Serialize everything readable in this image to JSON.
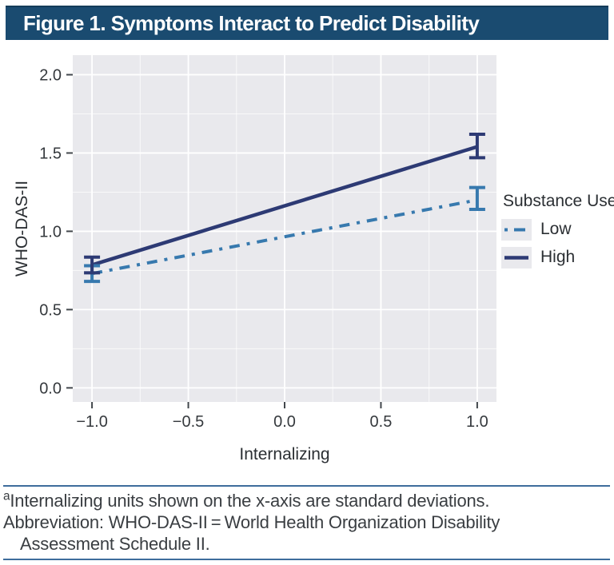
{
  "header": {
    "title": "Figure 1. Symptoms Interact to Predict Disability"
  },
  "chart_data": {
    "type": "line",
    "title": "",
    "xlabel": "Internalizing",
    "ylabel": "WHO-DAS-II",
    "x_ticks": [
      -1.0,
      -0.5,
      0.0,
      0.5,
      1.0
    ],
    "y_ticks": [
      0.0,
      0.5,
      1.0,
      1.5,
      2.0
    ],
    "x_range": [
      -1.1,
      1.1
    ],
    "y_range": [
      -0.09,
      2.125
    ],
    "grid": {
      "major": true,
      "minor": true,
      "color": "#ffffff"
    },
    "panel_bg": "#e9e9ed",
    "error_bars": true,
    "legend": {
      "title": "Substance Use",
      "position": "right",
      "items": [
        {
          "label": "Low",
          "series": 0
        },
        {
          "label": "High",
          "series": 1
        }
      ]
    },
    "series": [
      {
        "name": "Low",
        "color": "#3779ae",
        "line": "dash-dot",
        "x": [
          -1.0,
          1.0
        ],
        "y": [
          0.73,
          1.2
        ],
        "ci_low": [
          0.68,
          1.14
        ],
        "ci_high": [
          0.78,
          1.28
        ]
      },
      {
        "name": "High",
        "color": "#2d3a74",
        "line": "solid",
        "x": [
          -1.0,
          1.0
        ],
        "y": [
          0.785,
          1.54
        ],
        "ci_low": [
          0.735,
          1.47
        ],
        "ci_high": [
          0.835,
          1.62
        ]
      }
    ]
  },
  "footnotes": {
    "sup": "a",
    "line1": "Internalizing units shown on the x-axis are standard deviations.",
    "line2": "Abbreviation: WHO-DAS-II = World Health Organization Disability",
    "line3": "Assessment Schedule II."
  },
  "colors": {
    "header_bg": "#1a4b70",
    "header_text": "#ffffff",
    "rule": "#3e6d9c",
    "panel_bg": "#e9e9ed",
    "grid": "#ffffff",
    "low_series": "#3779ae",
    "high_series": "#2d3a74",
    "body_text": "#3a3e42"
  }
}
